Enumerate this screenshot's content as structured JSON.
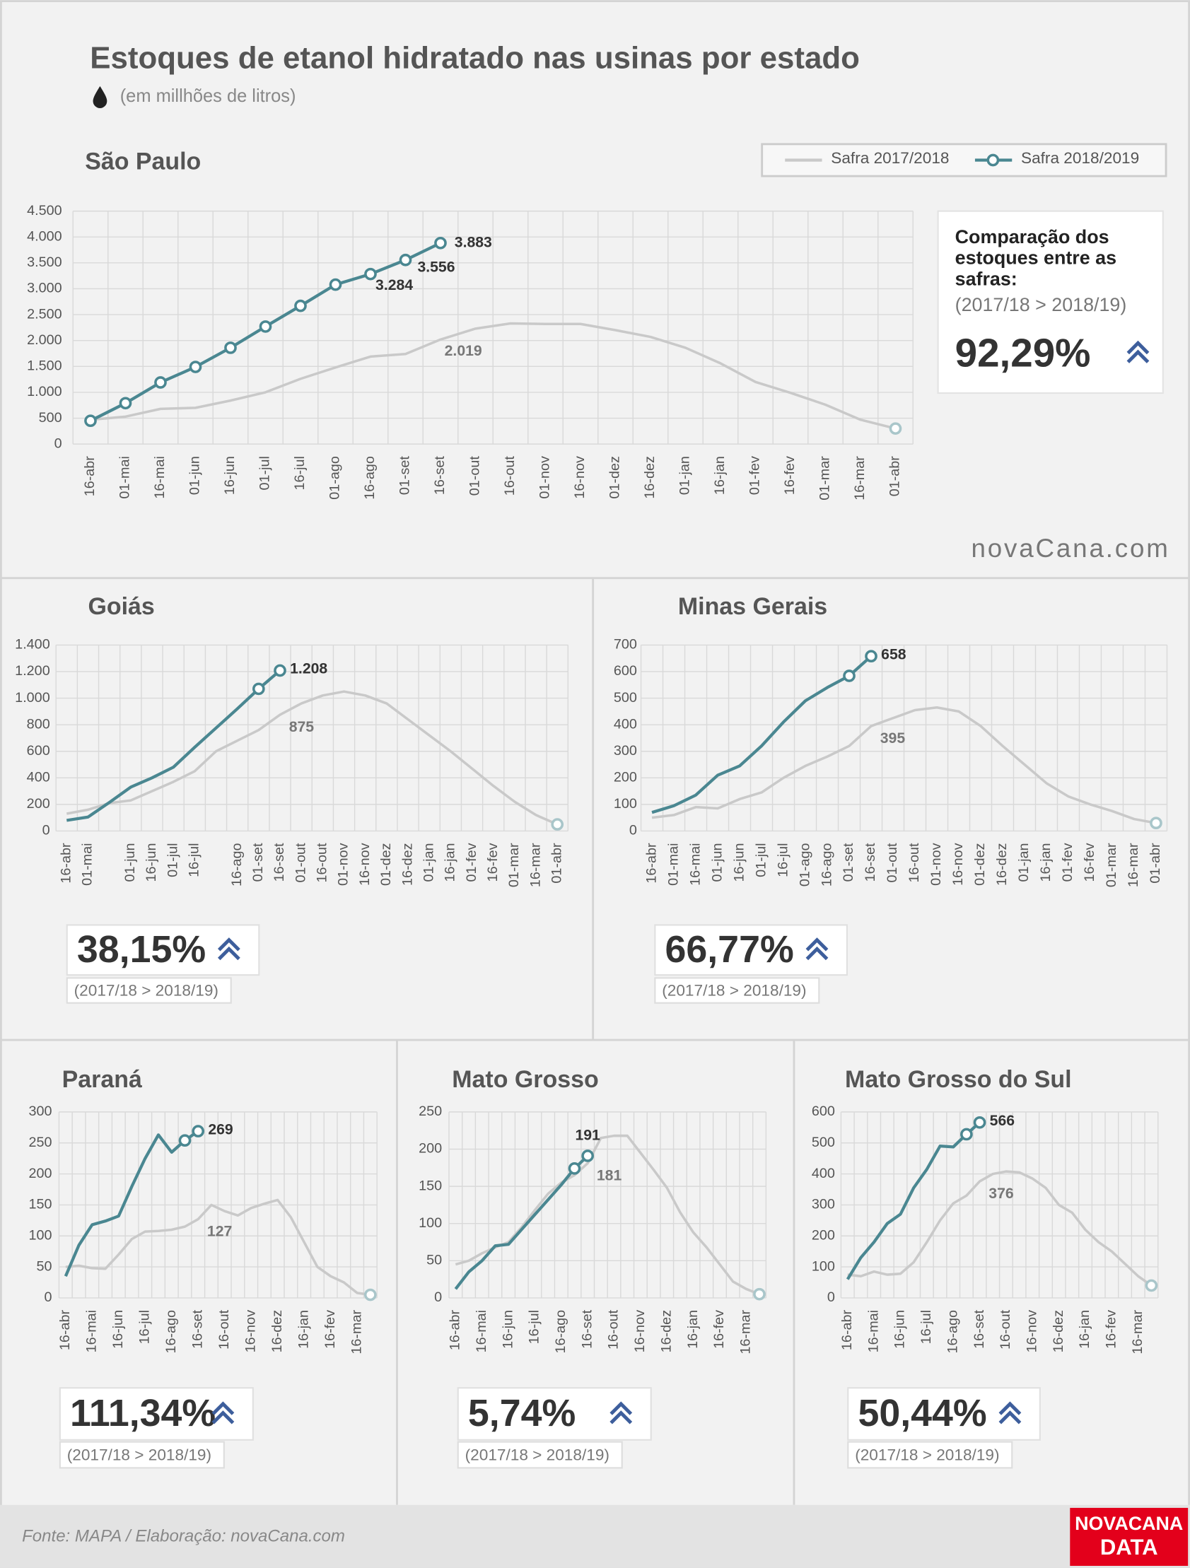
{
  "title": "Estoques de etanol hidratado nas usinas por estado",
  "subtitle": "(em millhões de litros)",
  "watermark": "novaCana.com",
  "footer": {
    "source": "Fonte: MAPA  / Elaboração: novaCana.com",
    "logo": [
      "NOVACANA",
      "DATA"
    ]
  },
  "chart_data": [
    {
      "type": "line",
      "title": "São Paulo",
      "grid": true,
      "legend": "top-right",
      "categories": [
        "16-abr",
        "01-mai",
        "16-mai",
        "01-jun",
        "16-jun",
        "01-jul",
        "16-jul",
        "01-ago",
        "16-ago",
        "01-set",
        "16-set",
        "01-out",
        "16-out",
        "01-nov",
        "16-nov",
        "01-dez",
        "16-dez",
        "01-jan",
        "16-jan",
        "01-fev",
        "16-fev",
        "01-mar",
        "16-mar",
        "01-abr"
      ],
      "ylim": [
        0,
        4500
      ],
      "yticks": [
        0,
        500,
        {
          "value": 1000,
          "label": "1.000"
        },
        {
          "value": 1500,
          "label": "1.500"
        },
        {
          "value": 2000,
          "label": "2.000"
        },
        {
          "value": 2500,
          "label": "2.500"
        },
        {
          "value": 3000,
          "label": "3.000"
        },
        {
          "value": 3500,
          "label": "3.500"
        },
        {
          "value": 4000,
          "label": "4.000"
        },
        {
          "value": 4500,
          "label": "4.500"
        }
      ],
      "series": [
        {
          "name": "Safra 2017/2018",
          "color": "#c9c9c9",
          "marker_color": "#a9c6ca",
          "marker_count": 1,
          "values": [
            470,
            530,
            680,
            700,
            840,
            1000,
            1260,
            1480,
            1690,
            1740,
            2019,
            2230,
            2330,
            2320,
            2320,
            2200,
            2070,
            1860,
            1560,
            1200,
            990,
            760,
            470,
            300
          ],
          "value_labels": [
            null,
            null,
            null,
            null,
            null,
            null,
            null,
            null,
            null,
            null,
            "2.019",
            null,
            null,
            null,
            null,
            null,
            null,
            null,
            null,
            null,
            null,
            null,
            null,
            null
          ]
        },
        {
          "name": "Safra 2018/2019",
          "color": "#4a8791",
          "marker_color": "#4a8791",
          "marker_count": 11,
          "values": [
            450,
            790,
            1190,
            1490,
            1860,
            2270,
            2670,
            3080,
            3284,
            3556,
            3883,
            null,
            null,
            null,
            null,
            null,
            null,
            null,
            null,
            null,
            null,
            null,
            null,
            null
          ],
          "value_labels": [
            null,
            null,
            null,
            null,
            null,
            null,
            null,
            null,
            "3.284",
            "3.556",
            "3.883",
            null,
            null,
            null,
            null,
            null,
            null,
            null,
            null,
            null,
            null,
            null,
            null,
            null
          ]
        }
      ],
      "comparison": {
        "heading": [
          "Comparação dos",
          "estoques entre as",
          "safras:"
        ],
        "range": "(2017/18 > 2018/19)",
        "value": "92,29%"
      }
    },
    {
      "type": "line",
      "title": "Goiás",
      "grid": true,
      "categories": [
        "16-abr",
        "01-mai",
        null,
        "01-jun",
        "16-jun",
        "01-jul",
        "16-jul",
        null,
        "16-ago",
        "01-set",
        "16-set",
        "01-out",
        "16-out",
        "01-nov",
        "16-nov",
        "01-dez",
        "16-dez",
        "01-jan",
        "16-jan",
        "01-fev",
        "16-fev",
        "01-mar",
        "16-mar",
        "01-abr"
      ],
      "ylim": [
        0,
        1400
      ],
      "yticks": [
        0,
        200,
        400,
        600,
        800,
        {
          "value": 1000,
          "label": "1.000"
        },
        {
          "value": 1200,
          "label": "1.200"
        },
        {
          "value": 1400,
          "label": "1.400"
        }
      ],
      "series": [
        {
          "name": "Safra 2017/2018",
          "color": "#c9c9c9",
          "marker_color": "#a9c6ca",
          "marker_count": 1,
          "values": [
            130,
            160,
            210,
            230,
            300,
            370,
            450,
            600,
            680,
            760,
            875,
            960,
            1020,
            1050,
            1020,
            960,
            840,
            720,
            600,
            470,
            340,
            220,
            120,
            50
          ],
          "value_labels": [
            null,
            null,
            null,
            null,
            null,
            null,
            null,
            null,
            null,
            null,
            "875",
            null,
            null,
            null,
            null,
            null,
            null,
            null,
            null,
            null,
            null,
            null,
            null,
            null
          ]
        },
        {
          "name": "Safra 2018/2019",
          "color": "#4a8791",
          "marker_color": "#4a8791",
          "marker_count": 2,
          "values": [
            80,
            105,
            215,
            330,
            400,
            480,
            630,
            775,
            920,
            1070,
            1208,
            null,
            null,
            null,
            null,
            null,
            null,
            null,
            null,
            null,
            null,
            null,
            null,
            null
          ],
          "value_labels": [
            null,
            null,
            null,
            null,
            null,
            null,
            null,
            null,
            null,
            null,
            "1.208",
            null,
            null,
            null,
            null,
            null,
            null,
            null,
            null,
            null,
            null,
            null,
            null,
            null
          ]
        }
      ],
      "comparison": {
        "range": "(2017/18 > 2018/19)",
        "value": "38,15%"
      }
    },
    {
      "type": "line",
      "title": "Minas Gerais",
      "grid": true,
      "categories": [
        "16-abr",
        "01-mai",
        "16-mai",
        "01-jun",
        "16-jun",
        "01-jul",
        "16-jul",
        "01-ago",
        "16-ago",
        "01-set",
        "16-set",
        "01-out",
        "16-out",
        "01-nov",
        "16-nov",
        "01-dez",
        "16-dez",
        "01-jan",
        "16-jan",
        "01-fev",
        "16-fev",
        "01-mar",
        "16-mar",
        "01-abr"
      ],
      "ylim": [
        0,
        700
      ],
      "yticks": [
        0,
        100,
        200,
        300,
        400,
        500,
        600,
        700
      ],
      "series": [
        {
          "name": "Safra 2017/2018",
          "color": "#c9c9c9",
          "marker_color": "#a9c6ca",
          "marker_count": 1,
          "values": [
            50,
            60,
            90,
            85,
            120,
            145,
            200,
            245,
            280,
            320,
            395,
            425,
            455,
            465,
            450,
            395,
            320,
            250,
            180,
            130,
            100,
            75,
            45,
            30
          ],
          "value_labels": [
            null,
            null,
            null,
            null,
            null,
            null,
            null,
            null,
            null,
            null,
            "395",
            null,
            null,
            null,
            null,
            null,
            null,
            null,
            null,
            null,
            null,
            null,
            null,
            null
          ]
        },
        {
          "name": "Safra 2018/2019",
          "color": "#4a8791",
          "marker_color": "#4a8791",
          "marker_count": 2,
          "values": [
            70,
            95,
            135,
            210,
            245,
            320,
            410,
            490,
            540,
            584,
            658,
            null,
            null,
            null,
            null,
            null,
            null,
            null,
            null,
            null,
            null,
            null,
            null,
            null
          ],
          "value_labels": [
            null,
            null,
            null,
            null,
            null,
            null,
            null,
            null,
            null,
            null,
            "658",
            null,
            null,
            null,
            null,
            null,
            null,
            null,
            null,
            null,
            null,
            null,
            null,
            null
          ]
        }
      ],
      "comparison": {
        "range": "(2017/18 > 2018/19)",
        "value": "66,77%"
      }
    },
    {
      "type": "line",
      "title": "Paraná",
      "grid": true,
      "categories": [
        "16-abr",
        null,
        "16-mai",
        null,
        "16-jun",
        null,
        "16-jul",
        null,
        "16-ago",
        null,
        "16-set",
        null,
        "16-out",
        null,
        "16-nov",
        null,
        "16-dez",
        null,
        "16-jan",
        null,
        "16-fev",
        null,
        "16-mar",
        null
      ],
      "ylim": [
        0,
        300
      ],
      "yticks": [
        0,
        50,
        100,
        150,
        200,
        250,
        300
      ],
      "series": [
        {
          "name": "Safra 2017/2018",
          "color": "#c9c9c9",
          "marker_color": "#a9c6ca",
          "marker_count": 1,
          "values": [
            50,
            52,
            48,
            47,
            70,
            95,
            107,
            108,
            110,
            115,
            127,
            150,
            140,
            133,
            145,
            152,
            158,
            130,
            90,
            50,
            35,
            25,
            8,
            5
          ],
          "value_labels": [
            null,
            null,
            null,
            null,
            null,
            null,
            null,
            null,
            null,
            null,
            "127",
            null,
            null,
            null,
            null,
            null,
            null,
            null,
            null,
            null,
            null,
            null,
            null,
            null
          ]
        },
        {
          "name": "Safra 2018/2019",
          "color": "#4a8791",
          "marker_color": "#4a8791",
          "marker_count": 2,
          "values": [
            35,
            85,
            118,
            124,
            132,
            180,
            225,
            263,
            235,
            254,
            269,
            null,
            null,
            null,
            null,
            null,
            null,
            null,
            null,
            null,
            null,
            null,
            null,
            null
          ],
          "value_labels": [
            null,
            null,
            null,
            null,
            null,
            null,
            null,
            null,
            null,
            null,
            "269",
            null,
            null,
            null,
            null,
            null,
            null,
            null,
            null,
            null,
            null,
            null,
            null,
            null
          ]
        }
      ],
      "comparison": {
        "range": "(2017/18 > 2018/19)",
        "value": "111,34%"
      }
    },
    {
      "type": "line",
      "title": "Mato Grosso",
      "grid": true,
      "categories": [
        "16-abr",
        null,
        "16-mai",
        null,
        "16-jun",
        null,
        "16-jul",
        null,
        "16-ago",
        null,
        "16-set",
        null,
        "16-out",
        null,
        "16-nov",
        null,
        "16-dez",
        null,
        "16-jan",
        null,
        "16-fev",
        null,
        "16-mar",
        null
      ],
      "ylim": [
        0,
        250
      ],
      "yticks": [
        0,
        50,
        100,
        150,
        200,
        250
      ],
      "series": [
        {
          "name": "Safra 2017/2018",
          "color": "#c9c9c9",
          "marker_color": "#a9c6ca",
          "marker_count": 1,
          "values": [
            45,
            50,
            60,
            68,
            75,
            95,
            118,
            140,
            155,
            165,
            181,
            215,
            218,
            218,
            195,
            172,
            148,
            115,
            88,
            68,
            45,
            22,
            12,
            5
          ],
          "value_labels": [
            null,
            null,
            null,
            null,
            null,
            null,
            null,
            null,
            null,
            null,
            "181",
            null,
            null,
            null,
            null,
            null,
            null,
            null,
            null,
            null,
            null,
            null,
            null,
            null
          ]
        },
        {
          "name": "Safra 2018/2019",
          "color": "#4a8791",
          "marker_color": "#4a8791",
          "marker_count": 2,
          "values": [
            12,
            35,
            50,
            70,
            72,
            92,
            112,
            132,
            152,
            174,
            191,
            null,
            null,
            null,
            null,
            null,
            null,
            null,
            null,
            null,
            null,
            null,
            null,
            null
          ],
          "value_labels": [
            null,
            null,
            null,
            null,
            null,
            null,
            null,
            null,
            null,
            null,
            "191",
            null,
            null,
            null,
            null,
            null,
            null,
            null,
            null,
            null,
            null,
            null,
            null,
            null
          ]
        }
      ],
      "comparison": {
        "range": "(2017/18 > 2018/19)",
        "value": "5,74%"
      }
    },
    {
      "type": "line",
      "title": "Mato Grosso do Sul",
      "grid": true,
      "categories": [
        "16-abr",
        null,
        "16-mai",
        null,
        "16-jun",
        null,
        "16-jul",
        null,
        "16-ago",
        null,
        "16-set",
        null,
        "16-out",
        null,
        "16-nov",
        null,
        "16-dez",
        null,
        "16-jan",
        null,
        "16-fev",
        null,
        "16-mar",
        null
      ],
      "ylim": [
        0,
        600
      ],
      "yticks": [
        0,
        100,
        200,
        300,
        400,
        500,
        600
      ],
      "series": [
        {
          "name": "Safra 2017/2018",
          "color": "#c9c9c9",
          "marker_color": "#a9c6ca",
          "marker_count": 1,
          "values": [
            75,
            70,
            85,
            75,
            78,
            115,
            180,
            250,
            305,
            330,
            376,
            400,
            408,
            405,
            385,
            355,
            300,
            275,
            220,
            180,
            150,
            110,
            70,
            40
          ],
          "value_labels": [
            null,
            null,
            null,
            null,
            null,
            null,
            null,
            null,
            null,
            null,
            "376",
            null,
            null,
            null,
            null,
            null,
            null,
            null,
            null,
            null,
            null,
            null,
            null,
            null
          ]
        },
        {
          "name": "Safra 2018/2019",
          "color": "#4a8791",
          "marker_color": "#4a8791",
          "marker_count": 2,
          "values": [
            60,
            130,
            180,
            240,
            270,
            355,
            415,
            490,
            487,
            528,
            566,
            null,
            null,
            null,
            null,
            null,
            null,
            null,
            null,
            null,
            null,
            null,
            null,
            null
          ],
          "value_labels": [
            null,
            null,
            null,
            null,
            null,
            null,
            null,
            null,
            null,
            null,
            "566",
            null,
            null,
            null,
            null,
            null,
            null,
            null,
            null,
            null,
            null,
            null,
            null,
            null
          ]
        }
      ],
      "comparison": {
        "range": "(2017/18 > 2018/19)",
        "value": "50,44%"
      }
    }
  ]
}
